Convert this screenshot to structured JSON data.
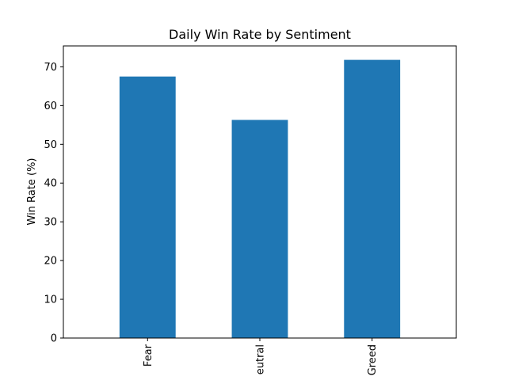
{
  "chart_data": {
    "type": "bar",
    "title": "Daily Win Rate by Sentiment",
    "xlabel": "",
    "ylabel": "Win Rate (%)",
    "categories": [
      "Fear",
      "eutral",
      "Greed"
    ],
    "values": [
      67.5,
      56.3,
      71.8
    ],
    "ylim": [
      0,
      75.4
    ],
    "yticks": [
      0,
      10,
      20,
      30,
      40,
      50,
      60,
      70
    ],
    "bar_color": "#1f77b4",
    "grid": false,
    "legend": "none"
  }
}
